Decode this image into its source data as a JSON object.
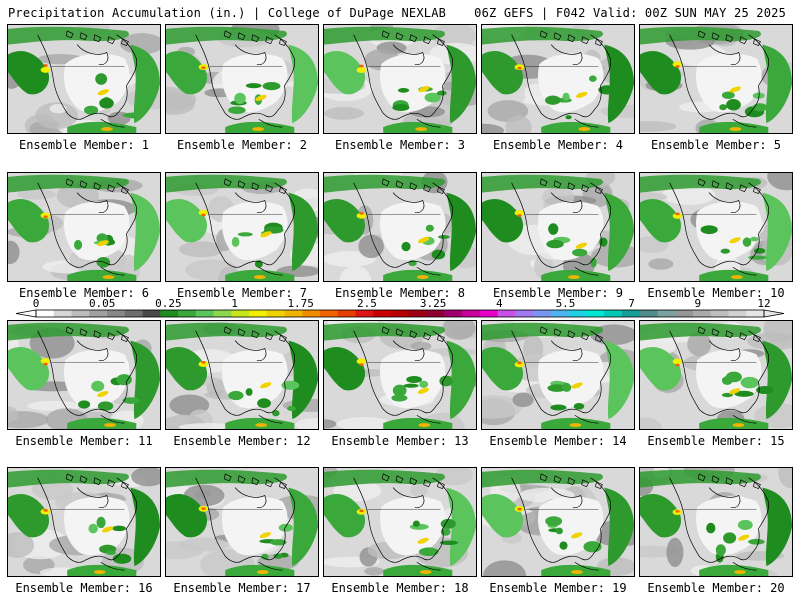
{
  "header": {
    "left_title": "Precipitation Accumulation (in.) | College of DuPage NEXLAB",
    "right_title": "06Z GEFS | F042 Valid: 00Z SUN MAY 25 2025"
  },
  "colorbar": {
    "tick_labels": [
      "0",
      "0.05",
      "0.25",
      "1",
      "1.75",
      "2.5",
      "3.25",
      "4",
      "5.5",
      "7",
      "9",
      "12"
    ],
    "colors": [
      "#ffffff",
      "#d8d8d8",
      "#bdbdbd",
      "#a0a0a0",
      "#888888",
      "#6e6e6e",
      "#4a4a4a",
      "#1e8c1e",
      "#3aa83a",
      "#5cc45c",
      "#8cd84a",
      "#c8e61e",
      "#f0f000",
      "#f0d200",
      "#f0b400",
      "#f08c00",
      "#f06400",
      "#e63c00",
      "#dc1414",
      "#c80000",
      "#b40000",
      "#a00014",
      "#8c0032",
      "#a0006e",
      "#c8009b",
      "#e600c8",
      "#c850e6",
      "#a078f0",
      "#7896f0",
      "#50b4f0",
      "#1ed2e6",
      "#00e6d2",
      "#00c8b4",
      "#14a096",
      "#508c8c",
      "#7aa0a0",
      "#969696",
      "#aaaaaa",
      "#bebebe",
      "#d2d2d2",
      "#e6e6e6"
    ]
  },
  "panels": [
    {
      "label": "Ensemble Member: 1"
    },
    {
      "label": "Ensemble Member: 2"
    },
    {
      "label": "Ensemble Member: 3"
    },
    {
      "label": "Ensemble Member: 4"
    },
    {
      "label": "Ensemble Member: 5"
    },
    {
      "label": "Ensemble Member: 6"
    },
    {
      "label": "Ensemble Member: 7"
    },
    {
      "label": "Ensemble Member: 8"
    },
    {
      "label": "Ensemble Member: 9"
    },
    {
      "label": "Ensemble Member: 10"
    },
    {
      "label": "Ensemble Member: 11"
    },
    {
      "label": "Ensemble Member: 12"
    },
    {
      "label": "Ensemble Member: 13"
    },
    {
      "label": "Ensemble Member: 14"
    },
    {
      "label": "Ensemble Member: 15"
    },
    {
      "label": "Ensemble Member: 16"
    },
    {
      "label": "Ensemble Member: 17"
    },
    {
      "label": "Ensemble Member: 18"
    },
    {
      "label": "Ensemble Member: 19"
    },
    {
      "label": "Ensemble Member: 20"
    }
  ]
}
